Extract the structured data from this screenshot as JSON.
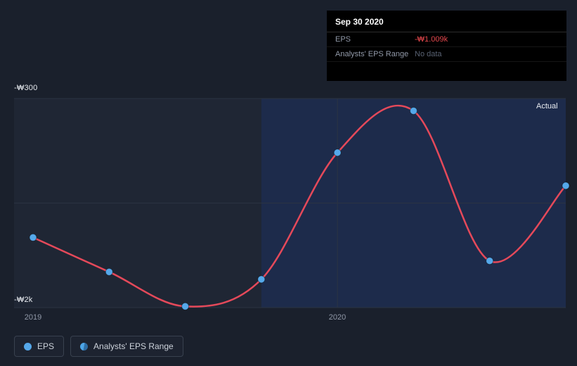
{
  "colors": {
    "background": "#1a202c",
    "plot_bg": "#1f2634",
    "actual_region_bg": "#1d2b4b",
    "grid": "#2b3342",
    "line": "#e5495a",
    "point_fill": "#55a8ea",
    "point_stroke": "#16365c",
    "tooltip_bg": "#000000",
    "value_negative": "#e5484d",
    "no_data_text": "#596273",
    "muted_text": "#9199a8",
    "bright_text": "#e8ebf0",
    "legend_border": "#39414f"
  },
  "tooltip": {
    "date": "Sep 30 2020",
    "rows": [
      {
        "label": "EPS",
        "value": "-₩1.009k",
        "status": "negative"
      },
      {
        "label": "Analysts' EPS Range",
        "value": "No data",
        "status": "nodata"
      }
    ]
  },
  "chart_data": {
    "type": "line",
    "title": "EPS history",
    "series": [
      {
        "name": "EPS",
        "x": [
          "2018-12-31",
          "2019-03-31",
          "2019-06-30",
          "2019-09-30",
          "2019-12-31",
          "2020-03-31",
          "2020-06-30",
          "2020-09-30"
        ],
        "values": [
          -1430,
          -1710,
          -1990,
          -1770,
          -740,
          -400,
          -1620,
          -1009
        ],
        "unit": "KRW"
      }
    ],
    "ylim": [
      -2000,
      -300
    ],
    "y_tick_labels": [
      "-₩300",
      "-₩2k"
    ],
    "x_tick_labels": [
      "2019",
      "2020"
    ],
    "x_tick_indices": [
      0,
      4
    ],
    "x_gridline_indices": [
      4
    ],
    "region_label": "Actual",
    "region_start_index": 3,
    "grid": true,
    "legend_position": "bottom"
  },
  "legend": {
    "items": [
      {
        "label": "EPS",
        "icon": "eps-dot"
      },
      {
        "label": "Analysts' EPS Range",
        "icon": "range-dot"
      }
    ]
  }
}
